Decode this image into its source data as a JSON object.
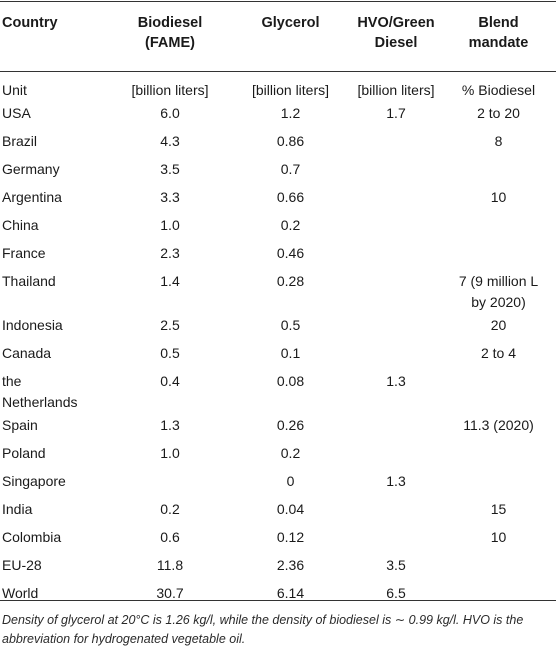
{
  "table": {
    "headers": [
      {
        "line1": "Country",
        "line2": ""
      },
      {
        "line1": "Biodiesel",
        "line2": "(FAME)"
      },
      {
        "line1": "Glycerol",
        "line2": ""
      },
      {
        "line1": "HVO/Green",
        "line2": "Diesel"
      },
      {
        "line1": "Blend",
        "line2": "mandate"
      }
    ],
    "unit_row": [
      "Unit",
      "[billion liters]",
      "[billion liters]",
      "[billion liters]",
      "% Biodiesel"
    ],
    "rows": [
      {
        "country": "USA",
        "biodiesel": "6.0",
        "glycerol": "1.2",
        "hvo": "1.7",
        "mandate": "2 to 20",
        "mandate2": ""
      },
      {
        "country": "Brazil",
        "biodiesel": "4.3",
        "glycerol": "0.86",
        "hvo": "",
        "mandate": "8",
        "mandate2": ""
      },
      {
        "country": "Germany",
        "biodiesel": "3.5",
        "glycerol": "0.7",
        "hvo": "",
        "mandate": "",
        "mandate2": ""
      },
      {
        "country": "Argentina",
        "biodiesel": "3.3",
        "glycerol": "0.66",
        "hvo": "",
        "mandate": "10",
        "mandate2": ""
      },
      {
        "country": "China",
        "biodiesel": "1.0",
        "glycerol": "0.2",
        "hvo": "",
        "mandate": "",
        "mandate2": ""
      },
      {
        "country": "France",
        "biodiesel": "2.3",
        "glycerol": "0.46",
        "hvo": "",
        "mandate": "",
        "mandate2": ""
      },
      {
        "country": "Thailand",
        "biodiesel": "1.4",
        "glycerol": "0.28",
        "hvo": "",
        "mandate": "7 (9 million L",
        "mandate2": "by 2020)"
      },
      {
        "country": "Indonesia",
        "biodiesel": "2.5",
        "glycerol": "0.5",
        "hvo": "",
        "mandate": "20",
        "mandate2": ""
      },
      {
        "country": "Canada",
        "biodiesel": "0.5",
        "glycerol": "0.1",
        "hvo": "",
        "mandate": "2 to 4",
        "mandate2": ""
      },
      {
        "country": "the",
        "country2": "Netherlands",
        "biodiesel": "0.4",
        "glycerol": "0.08",
        "hvo": "1.3",
        "mandate": "",
        "mandate2": ""
      },
      {
        "country": "Spain",
        "biodiesel": "1.3",
        "glycerol": "0.26",
        "hvo": "",
        "mandate": "11.3 (2020)",
        "mandate2": ""
      },
      {
        "country": "Poland",
        "biodiesel": "1.0",
        "glycerol": "0.2",
        "hvo": "",
        "mandate": "",
        "mandate2": ""
      },
      {
        "country": "Singapore",
        "biodiesel": "",
        "glycerol": "0",
        "hvo": "1.3",
        "mandate": "",
        "mandate2": ""
      },
      {
        "country": "India",
        "biodiesel": "0.2",
        "glycerol": "0.04",
        "hvo": "",
        "mandate": "15",
        "mandate2": ""
      },
      {
        "country": "Colombia",
        "biodiesel": "0.6",
        "glycerol": "0.12",
        "hvo": "",
        "mandate": "10",
        "mandate2": ""
      },
      {
        "country": "EU-28",
        "biodiesel": "11.8",
        "glycerol": "2.36",
        "hvo": "3.5",
        "mandate": "",
        "mandate2": ""
      },
      {
        "country": "World",
        "biodiesel": "30.7",
        "glycerol": "6.14",
        "hvo": "6.5",
        "mandate": "",
        "mandate2": ""
      }
    ]
  },
  "footnote": "Density of glycerol at 20°C is 1.26 kg/l, while the density of biodiesel is ∼ 0.99 kg/l. HVO is the abbreviation for hydrogenated vegetable oil."
}
